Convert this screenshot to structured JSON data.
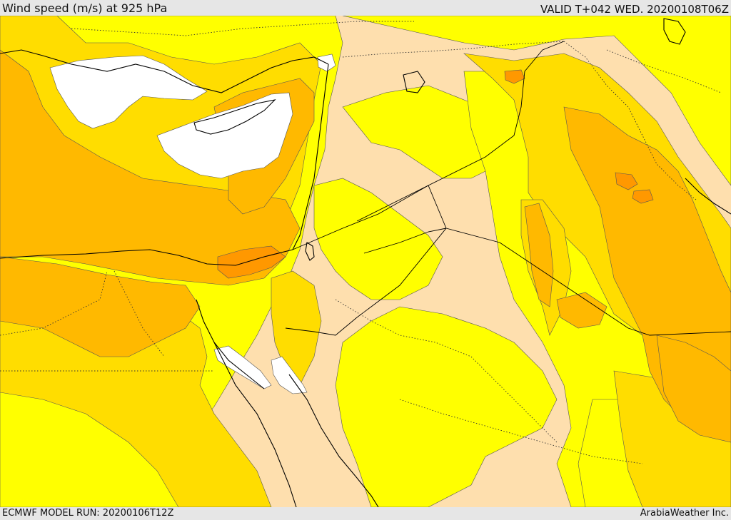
{
  "header": {
    "title": "Wind speed (m/s) at 925 hPa",
    "valid_time": "VALID T+042 WED. 20200108T06Z"
  },
  "footer": {
    "model_run": "ECMWF MODEL RUN: 20200106T12Z",
    "credit": "ArabiaWeather Inc."
  },
  "colors": {
    "calm": "#ffffff",
    "light": "#fedfae",
    "moderate": "#ffff00",
    "fresh": "#ffdd00",
    "strong": "#ffb900",
    "very_strong": "#ff9800",
    "coast_line": "#000000",
    "border_line": "#333333"
  }
}
